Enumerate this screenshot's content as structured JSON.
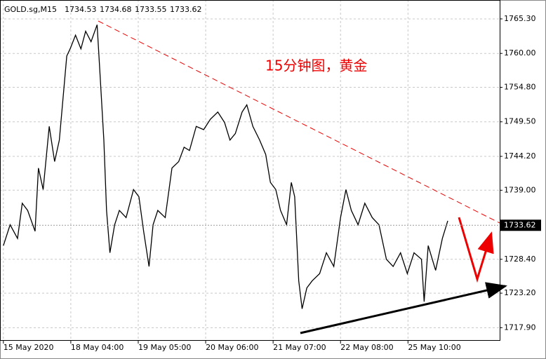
{
  "chart_data": {
    "type": "line",
    "symbol": "GOLD.sg,M15",
    "ohlc": [
      1734.53,
      1734.68,
      1733.55,
      1733.62
    ],
    "annotation": "15分钟图，黄金",
    "xlim": [
      -0.05,
      7.36
    ],
    "xticks": [
      {
        "value": 0,
        "label": "15 May 2020"
      },
      {
        "value": 1,
        "label": "18 May 04:00"
      },
      {
        "value": 2,
        "label": "19 May 05:00"
      },
      {
        "value": 3,
        "label": "20 May 06:00"
      },
      {
        "value": 4,
        "label": "21 May 07:00"
      },
      {
        "value": 5,
        "label": "22 May 08:00"
      },
      {
        "value": 6,
        "label": "25 May 10:00"
      }
    ],
    "ylim": [
      1716.0,
      1768.2
    ],
    "yticks": [
      {
        "value": 1717.9,
        "label": "1717.90"
      },
      {
        "value": 1723.2,
        "label": "1723.20"
      },
      {
        "value": 1728.4,
        "label": "1728.40"
      },
      {
        "value": 1739.0,
        "label": "1739.00"
      },
      {
        "value": 1744.2,
        "label": "1744.20"
      },
      {
        "value": 1749.5,
        "label": "1749.50"
      },
      {
        "value": 1754.8,
        "label": "1754.80"
      },
      {
        "value": 1760.0,
        "label": "1760.00"
      },
      {
        "value": 1765.3,
        "label": "1765.30"
      }
    ],
    "grid": true,
    "series": [
      {
        "color": "#000000",
        "x": [
          0,
          0.1,
          0.21,
          0.28,
          0.36,
          0.47,
          0.52,
          0.59,
          0.68,
          0.76,
          0.83,
          0.94,
          0.99,
          1.07,
          1.15,
          1.22,
          1.3,
          1.39,
          1.43,
          1.49,
          1.53,
          1.58,
          1.65,
          1.72,
          1.82,
          1.93,
          2.01,
          2.08,
          2.16,
          2.22,
          2.29,
          2.4,
          2.5,
          2.6,
          2.68,
          2.76,
          2.86,
          2.97,
          3.07,
          3.18,
          3.28,
          3.36,
          3.44,
          3.54,
          3.61,
          3.7,
          3.8,
          3.89,
          3.96,
          4.04,
          4.11,
          4.2,
          4.27,
          4.32,
          4.38,
          4.43,
          4.5,
          4.58,
          4.69,
          4.79,
          4.9,
          5.0,
          5.08,
          5.16,
          5.26,
          5.36,
          5.47,
          5.57,
          5.68,
          5.78,
          5.89,
          5.99,
          6.09,
          6.2,
          6.24,
          6.3,
          6.41,
          6.51,
          6.59
        ],
        "values": [
          1730.5,
          1733.7,
          1731.6,
          1737.0,
          1735.9,
          1732.7,
          1742.4,
          1739.1,
          1748.8,
          1743.4,
          1746.7,
          1759.6,
          1760.7,
          1762.8,
          1760.7,
          1763.4,
          1761.8,
          1764.4,
          1757.4,
          1746.7,
          1735.9,
          1729.4,
          1733.7,
          1735.9,
          1734.8,
          1739.1,
          1738.0,
          1732.7,
          1727.3,
          1733.7,
          1735.9,
          1734.8,
          1742.4,
          1743.4,
          1745.6,
          1745.1,
          1748.8,
          1748.3,
          1749.9,
          1751.0,
          1749.4,
          1746.7,
          1747.7,
          1751.0,
          1752.1,
          1748.8,
          1746.7,
          1744.5,
          1740.2,
          1739.1,
          1735.9,
          1733.7,
          1740.2,
          1738.0,
          1725.1,
          1720.8,
          1724.0,
          1725.1,
          1726.2,
          1729.4,
          1727.3,
          1734.8,
          1739.1,
          1735.9,
          1733.7,
          1737.0,
          1734.8,
          1733.7,
          1728.4,
          1727.3,
          1729.4,
          1726.2,
          1729.4,
          1728.4,
          1721.9,
          1730.5,
          1726.7,
          1731.6,
          1734.3
        ]
      }
    ]
  }
}
